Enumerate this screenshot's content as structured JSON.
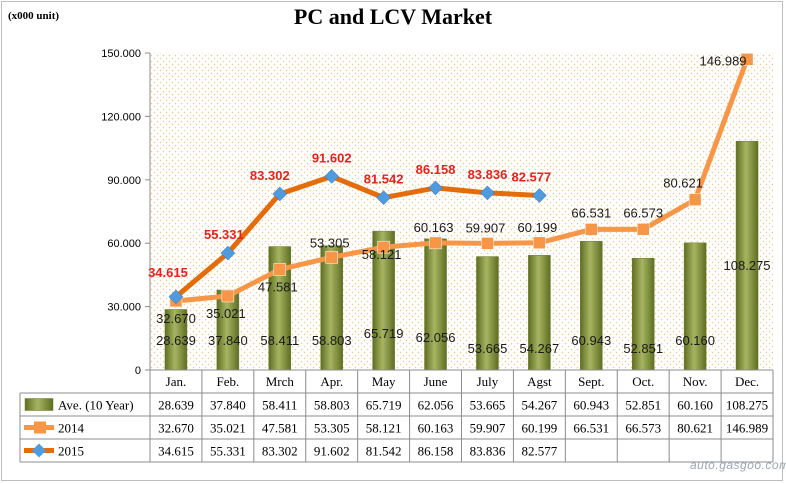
{
  "unit_label": "(x000 unit)",
  "watermark": "auto.gasgoo.com",
  "chart_data": {
    "type": "bar",
    "title": "PC and LCV Market",
    "categories": [
      "Jan.",
      "Feb.",
      "Mrch",
      "Apr.",
      "May",
      "June",
      "July",
      "Agst",
      "Sept.",
      "Oct.",
      "Nov.",
      "Dec."
    ],
    "ylim": [
      0,
      150
    ],
    "yticks": [
      "0",
      "30.000",
      "60.000",
      "90.000",
      "120.000",
      "150.000"
    ],
    "ytick_values": [
      0,
      30,
      60,
      90,
      120,
      150
    ],
    "grid": false,
    "legend": "table below",
    "series": [
      {
        "name": "Ave. (10 Year)",
        "kind": "bar",
        "color": "#7a8a3a",
        "values": [
          28.639,
          37.84,
          58.411,
          58.803,
          65.719,
          62.056,
          53.665,
          54.267,
          60.943,
          52.851,
          60.16,
          108.275
        ],
        "labels": [
          "28.639",
          "37.840",
          "58.411",
          "58.803",
          "65.719",
          "62.056",
          "53.665",
          "54.267",
          "60.943",
          "52.851",
          "60.160",
          "108.275"
        ]
      },
      {
        "name": "2014",
        "kind": "line",
        "color": "#f79646",
        "values": [
          32.67,
          35.021,
          47.581,
          53.305,
          58.121,
          60.163,
          59.907,
          60.199,
          66.531,
          66.573,
          80.621,
          146.989
        ],
        "labels": [
          "32.670",
          "35.021",
          "47.581",
          "53.305",
          "58.121",
          "60.163",
          "59.907",
          "60.199",
          "66.531",
          "66.573",
          "80.621",
          "146.989"
        ]
      },
      {
        "name": "2015",
        "kind": "line",
        "color": "#e46c0a",
        "marker_color": "#4f9be0",
        "label_color": "#e8221b",
        "values": [
          34.615,
          55.331,
          83.302,
          91.602,
          81.542,
          86.158,
          83.836,
          82.577,
          null,
          null,
          null,
          null
        ],
        "labels": [
          "34.615",
          "55.331",
          "83.302",
          "91.602",
          "81.542",
          "86.158",
          "83.836",
          "82.577",
          "",
          "",
          "",
          ""
        ]
      }
    ]
  }
}
